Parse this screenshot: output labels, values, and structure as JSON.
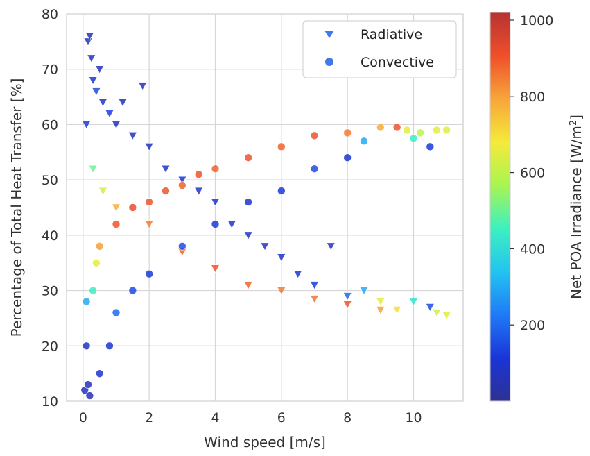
{
  "chart_data": {
    "type": "scatter",
    "xlabel": "Wind speed [m/s]",
    "ylabel": "Percentage of Total Heat Transfer [%]",
    "xlim": [
      -0.5,
      11.5
    ],
    "ylim": [
      10,
      80
    ],
    "xticks": [
      0,
      2,
      4,
      6,
      8,
      10
    ],
    "yticks": [
      10,
      20,
      30,
      40,
      50,
      60,
      70,
      80
    ],
    "grid": true,
    "legend_position": "top-right",
    "colorbar": {
      "label": "Net POA Irradiance [W/m²]",
      "label_main": "Net POA Irradiance [W/m",
      "label_sup": "2",
      "label_end": "]",
      "range": [
        0,
        1020
      ],
      "ticks": [
        200,
        400,
        600,
        800,
        1000
      ],
      "colormap": "jet",
      "colors": [
        "#2e3192",
        "#1a35d8",
        "#1f7af7",
        "#22c4f0",
        "#3ef0c0",
        "#a8f552",
        "#f5ea3a",
        "#f8a53a",
        "#ef4f2a",
        "#b83232"
      ]
    },
    "series": [
      {
        "name": "Radiative",
        "marker": "triangle-down",
        "legend_color": "#3e7ae8",
        "points": [
          {
            "x": 0.1,
            "y": 60,
            "c": 120
          },
          {
            "x": 0.15,
            "y": 75,
            "c": 60
          },
          {
            "x": 0.2,
            "y": 76,
            "c": 50
          },
          {
            "x": 0.25,
            "y": 72,
            "c": 80
          },
          {
            "x": 0.3,
            "y": 68,
            "c": 100
          },
          {
            "x": 0.4,
            "y": 66,
            "c": 150
          },
          {
            "x": 0.5,
            "y": 70,
            "c": 60
          },
          {
            "x": 0.6,
            "y": 64,
            "c": 90
          },
          {
            "x": 0.8,
            "y": 62,
            "c": 130
          },
          {
            "x": 1.0,
            "y": 60,
            "c": 80
          },
          {
            "x": 1.2,
            "y": 64,
            "c": 60
          },
          {
            "x": 1.5,
            "y": 58,
            "c": 70
          },
          {
            "x": 1.8,
            "y": 67,
            "c": 60
          },
          {
            "x": 2.0,
            "y": 56,
            "c": 70
          },
          {
            "x": 2.5,
            "y": 52,
            "c": 90
          },
          {
            "x": 3.0,
            "y": 50,
            "c": 100
          },
          {
            "x": 3.5,
            "y": 48,
            "c": 80
          },
          {
            "x": 4.0,
            "y": 46,
            "c": 90
          },
          {
            "x": 4.5,
            "y": 42,
            "c": 110
          },
          {
            "x": 5.0,
            "y": 40,
            "c": 80
          },
          {
            "x": 5.5,
            "y": 38,
            "c": 70
          },
          {
            "x": 6.0,
            "y": 36,
            "c": 90
          },
          {
            "x": 6.5,
            "y": 33,
            "c": 100
          },
          {
            "x": 7.0,
            "y": 31,
            "c": 120
          },
          {
            "x": 7.5,
            "y": 38,
            "c": 70
          },
          {
            "x": 8.0,
            "y": 29,
            "c": 200
          },
          {
            "x": 8.5,
            "y": 30,
            "c": 300
          },
          {
            "x": 9.0,
            "y": 28,
            "c": 650
          },
          {
            "x": 9.5,
            "y": 26.5,
            "c": 700
          },
          {
            "x": 10.0,
            "y": 28,
            "c": 420
          },
          {
            "x": 10.5,
            "y": 27,
            "c": 150
          },
          {
            "x": 10.7,
            "y": 26,
            "c": 620
          },
          {
            "x": 11.0,
            "y": 25.5,
            "c": 650
          },
          {
            "x": 0.3,
            "y": 52,
            "c": 500
          },
          {
            "x": 0.6,
            "y": 48,
            "c": 620
          },
          {
            "x": 1.0,
            "y": 45,
            "c": 780
          },
          {
            "x": 2.0,
            "y": 42,
            "c": 850
          },
          {
            "x": 3.0,
            "y": 37,
            "c": 880
          },
          {
            "x": 4.0,
            "y": 34,
            "c": 900
          },
          {
            "x": 5.0,
            "y": 31,
            "c": 880
          },
          {
            "x": 6.0,
            "y": 30,
            "c": 850
          },
          {
            "x": 7.0,
            "y": 28.5,
            "c": 860
          },
          {
            "x": 8.0,
            "y": 27.5,
            "c": 900
          },
          {
            "x": 9.0,
            "y": 26.5,
            "c": 800
          }
        ]
      },
      {
        "name": "Convective",
        "marker": "circle",
        "legend_color": "#3e7ae8",
        "points": [
          {
            "x": 0.05,
            "y": 12,
            "c": 60
          },
          {
            "x": 0.1,
            "y": 20,
            "c": 80
          },
          {
            "x": 0.1,
            "y": 28,
            "c": 300
          },
          {
            "x": 0.15,
            "y": 13,
            "c": 70
          },
          {
            "x": 0.2,
            "y": 11,
            "c": 60
          },
          {
            "x": 0.3,
            "y": 30,
            "c": 450
          },
          {
            "x": 0.4,
            "y": 35,
            "c": 650
          },
          {
            "x": 0.5,
            "y": 38,
            "c": 800
          },
          {
            "x": 0.5,
            "y": 15,
            "c": 80
          },
          {
            "x": 0.8,
            "y": 20,
            "c": 100
          },
          {
            "x": 1.0,
            "y": 42,
            "c": 900
          },
          {
            "x": 1.0,
            "y": 26,
            "c": 200
          },
          {
            "x": 1.5,
            "y": 45,
            "c": 920
          },
          {
            "x": 1.5,
            "y": 30,
            "c": 150
          },
          {
            "x": 2.0,
            "y": 46,
            "c": 900
          },
          {
            "x": 2.0,
            "y": 33,
            "c": 120
          },
          {
            "x": 2.5,
            "y": 48,
            "c": 900
          },
          {
            "x": 3.0,
            "y": 49,
            "c": 880
          },
          {
            "x": 3.0,
            "y": 38,
            "c": 150
          },
          {
            "x": 3.5,
            "y": 51,
            "c": 900
          },
          {
            "x": 4.0,
            "y": 52,
            "c": 880
          },
          {
            "x": 4.0,
            "y": 42,
            "c": 120
          },
          {
            "x": 5.0,
            "y": 54,
            "c": 900
          },
          {
            "x": 5.0,
            "y": 46,
            "c": 100
          },
          {
            "x": 6.0,
            "y": 56,
            "c": 880
          },
          {
            "x": 6.0,
            "y": 48,
            "c": 120
          },
          {
            "x": 7.0,
            "y": 58,
            "c": 900
          },
          {
            "x": 7.0,
            "y": 52,
            "c": 150
          },
          {
            "x": 8.0,
            "y": 58.5,
            "c": 850
          },
          {
            "x": 8.0,
            "y": 54,
            "c": 100
          },
          {
            "x": 8.5,
            "y": 57,
            "c": 300
          },
          {
            "x": 9.0,
            "y": 59.5,
            "c": 780
          },
          {
            "x": 9.5,
            "y": 59.5,
            "c": 900
          },
          {
            "x": 9.8,
            "y": 59,
            "c": 650
          },
          {
            "x": 10.0,
            "y": 57.5,
            "c": 450
          },
          {
            "x": 10.2,
            "y": 58.5,
            "c": 600
          },
          {
            "x": 10.5,
            "y": 56,
            "c": 120
          },
          {
            "x": 10.7,
            "y": 59,
            "c": 650
          },
          {
            "x": 11.0,
            "y": 59,
            "c": 650
          }
        ]
      }
    ]
  }
}
